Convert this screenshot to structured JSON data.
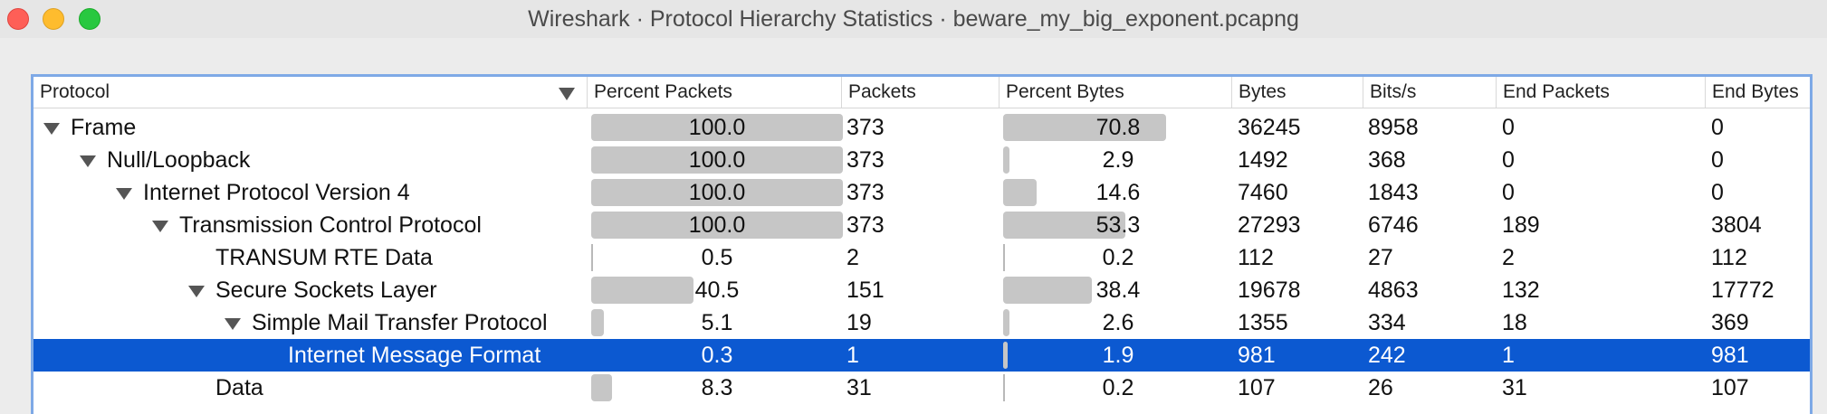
{
  "window": {
    "title": "Wireshark · Protocol Hierarchy Statistics · beware_my_big_exponent.pcapng"
  },
  "columns": {
    "protocol": "Protocol",
    "percent_packets": "Percent Packets",
    "packets": "Packets",
    "percent_bytes": "Percent Bytes",
    "bytes": "Bytes",
    "bits_s": "Bits/s",
    "end_packets": "End Packets",
    "end_bytes": "End Bytes"
  },
  "rows": [
    {
      "protocol": "Frame",
      "level": 0,
      "expandable": true,
      "percent_packets": "100.0",
      "packets": "373",
      "percent_bytes": "70.8",
      "bytes": "36245",
      "bits_s": "8958",
      "end_packets": "0",
      "end_bytes": "0",
      "selected": false
    },
    {
      "protocol": "Null/Loopback",
      "level": 1,
      "expandable": true,
      "percent_packets": "100.0",
      "packets": "373",
      "percent_bytes": "2.9",
      "bytes": "1492",
      "bits_s": "368",
      "end_packets": "0",
      "end_bytes": "0",
      "selected": false
    },
    {
      "protocol": "Internet Protocol Version 4",
      "level": 2,
      "expandable": true,
      "percent_packets": "100.0",
      "packets": "373",
      "percent_bytes": "14.6",
      "bytes": "7460",
      "bits_s": "1843",
      "end_packets": "0",
      "end_bytes": "0",
      "selected": false
    },
    {
      "protocol": "Transmission Control Protocol",
      "level": 3,
      "expandable": true,
      "percent_packets": "100.0",
      "packets": "373",
      "percent_bytes": "53.3",
      "bytes": "27293",
      "bits_s": "6746",
      "end_packets": "189",
      "end_bytes": "3804",
      "selected": false
    },
    {
      "protocol": "TRANSUM RTE Data",
      "level": 4,
      "expandable": false,
      "percent_packets": "0.5",
      "packets": "2",
      "percent_bytes": "0.2",
      "bytes": "112",
      "bits_s": "27",
      "end_packets": "2",
      "end_bytes": "112",
      "selected": false
    },
    {
      "protocol": "Secure Sockets Layer",
      "level": 4,
      "expandable": true,
      "percent_packets": "40.5",
      "packets": "151",
      "percent_bytes": "38.4",
      "bytes": "19678",
      "bits_s": "4863",
      "end_packets": "132",
      "end_bytes": "17772",
      "selected": false
    },
    {
      "protocol": "Simple Mail Transfer Protocol",
      "level": 5,
      "expandable": true,
      "percent_packets": "5.1",
      "packets": "19",
      "percent_bytes": "2.6",
      "bytes": "1355",
      "bits_s": "334",
      "end_packets": "18",
      "end_bytes": "369",
      "selected": false
    },
    {
      "protocol": "Internet Message Format",
      "level": 6,
      "expandable": false,
      "percent_packets": "0.3",
      "packets": "1",
      "percent_bytes": "1.9",
      "bytes": "981",
      "bits_s": "242",
      "end_packets": "1",
      "end_bytes": "981",
      "selected": true
    },
    {
      "protocol": "Data",
      "level": 4,
      "expandable": false,
      "percent_packets": "8.3",
      "packets": "31",
      "percent_bytes": "0.2",
      "bytes": "107",
      "bits_s": "26",
      "end_packets": "31",
      "end_bytes": "107",
      "selected": false
    }
  ],
  "icons": {
    "sort": "sort-descending-icon",
    "expander": "disclosure-triangle-icon"
  },
  "colors": {
    "selection": "#0c59d1",
    "bar": "#c6c6c6",
    "focus_ring": "#7ea9e6"
  }
}
